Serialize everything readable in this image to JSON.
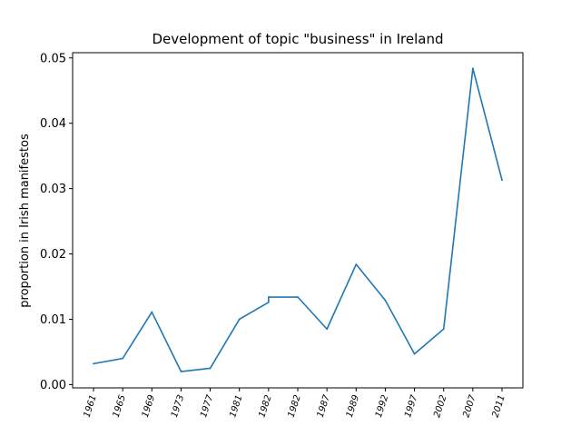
{
  "chart_data": {
    "type": "line",
    "title": "Development of topic \"business\" in Ireland",
    "xlabel": "",
    "ylabel": "proportion in Irish manifestos",
    "categories": [
      "1961",
      "1965",
      "1969",
      "1973",
      "1977",
      "1981",
      "1982",
      "1982",
      "1987",
      "1989",
      "1992",
      "1997",
      "2002",
      "2007",
      "2011"
    ],
    "series": [
      {
        "color": "#1f77b4",
        "points": [
          [
            0,
            0.0032
          ],
          [
            1,
            0.004
          ],
          [
            2,
            0.0111
          ],
          [
            3,
            0.002
          ],
          [
            4,
            0.0025
          ],
          [
            5,
            0.01
          ],
          [
            6,
            0.0126
          ],
          [
            6,
            0.0134
          ],
          [
            7,
            0.0134
          ],
          [
            8,
            0.0085
          ],
          [
            9,
            0.0184
          ],
          [
            10,
            0.0129
          ],
          [
            11,
            0.0047
          ],
          [
            12,
            0.0085
          ],
          [
            13,
            0.0484
          ],
          [
            14,
            0.0313
          ]
        ]
      }
    ],
    "ylim": [
      -0.0005,
      0.0508
    ],
    "yticks": [
      0.0,
      0.01,
      0.02,
      0.03,
      0.04,
      0.05
    ],
    "ytick_labels": [
      "0.00",
      "0.01",
      "0.02",
      "0.03",
      "0.04",
      "0.05"
    ],
    "grid": false
  }
}
